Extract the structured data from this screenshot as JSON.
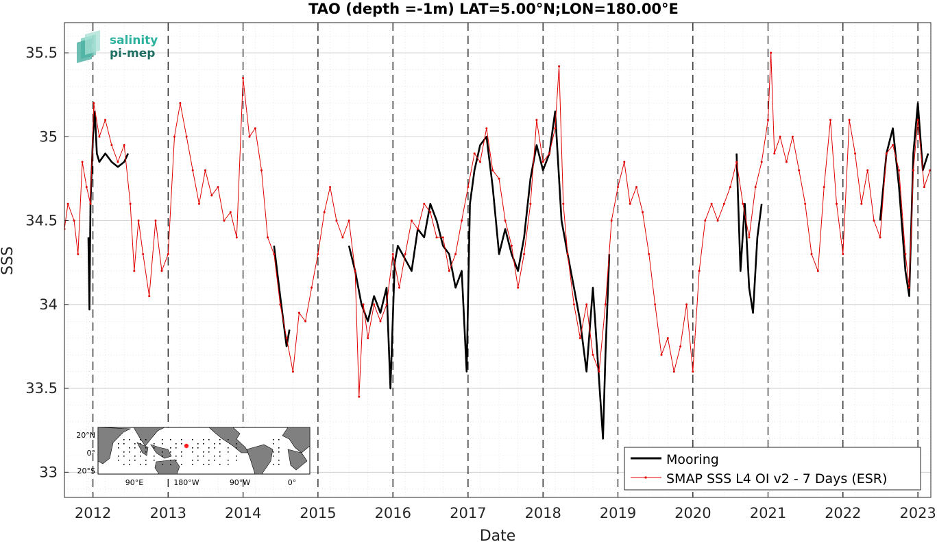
{
  "chart_data": {
    "type": "line",
    "title": "TAO (depth =-1m) LAT=5.00°N;LON=180.00°E",
    "xlabel": "Date",
    "ylabel": "SSS",
    "xlim": [
      "2011-08-15",
      "2023-03-05"
    ],
    "ylim": [
      32.85,
      35.68
    ],
    "x_ticks": [
      "2012",
      "2013",
      "2014",
      "2015",
      "2016",
      "2017",
      "2018",
      "2019",
      "2020",
      "2021",
      "2022",
      "2023"
    ],
    "y_ticks": [
      "33",
      "33.5",
      "34",
      "34.5",
      "35",
      "35.5"
    ],
    "grid": true,
    "year_boundaries_dashed": true,
    "legend_position": "bottom-right",
    "series": [
      {
        "name": "Mooring",
        "color": "#000000",
        "points": [
          [
            "2011-12-10",
            34.4
          ],
          [
            "2011-12-15",
            33.97
          ],
          [
            "2011-12-20",
            34.6
          ],
          [
            "2012-01-01",
            35.0
          ],
          [
            "2012-01-10",
            35.15
          ],
          [
            "2012-01-20",
            34.9
          ],
          [
            "2012-02-01",
            34.85
          ],
          [
            "2012-03-01",
            34.9
          ],
          [
            "2012-04-01",
            34.85
          ],
          [
            "2012-05-01",
            34.82
          ],
          [
            "2012-06-01",
            34.85
          ],
          [
            "2012-06-20",
            34.9
          ],
          [
            "2014-06-01",
            34.35
          ],
          [
            "2014-07-01",
            34.05
          ],
          [
            "2014-08-01",
            33.75
          ],
          [
            "2014-08-15",
            33.85
          ],
          [
            "2015-06-01",
            34.35
          ],
          [
            "2015-07-01",
            34.2
          ],
          [
            "2015-08-01",
            34.0
          ],
          [
            "2015-09-01",
            33.9
          ],
          [
            "2015-10-01",
            34.05
          ],
          [
            "2015-11-01",
            33.95
          ],
          [
            "2015-12-01",
            34.1
          ],
          [
            "2015-12-20",
            33.5
          ],
          [
            "2016-01-10",
            34.25
          ],
          [
            "2016-01-25",
            34.35
          ],
          [
            "2016-04-01",
            34.2
          ],
          [
            "2016-05-01",
            34.45
          ],
          [
            "2016-06-01",
            34.4
          ],
          [
            "2016-07-01",
            34.6
          ],
          [
            "2016-08-01",
            34.5
          ],
          [
            "2016-09-01",
            34.35
          ],
          [
            "2016-10-01",
            34.3
          ],
          [
            "2016-11-01",
            34.1
          ],
          [
            "2016-12-01",
            34.2
          ],
          [
            "2016-12-25",
            33.6
          ],
          [
            "2017-01-10",
            34.6
          ],
          [
            "2017-02-01",
            34.8
          ],
          [
            "2017-03-01",
            34.95
          ],
          [
            "2017-04-01",
            35.0
          ],
          [
            "2017-05-01",
            34.7
          ],
          [
            "2017-06-01",
            34.3
          ],
          [
            "2017-07-01",
            34.45
          ],
          [
            "2017-08-01",
            34.3
          ],
          [
            "2017-09-01",
            34.2
          ],
          [
            "2017-10-01",
            34.4
          ],
          [
            "2017-11-01",
            34.75
          ],
          [
            "2017-12-01",
            34.95
          ],
          [
            "2018-01-01",
            34.8
          ],
          [
            "2018-02-01",
            34.9
          ],
          [
            "2018-03-01",
            35.15
          ],
          [
            "2018-04-01",
            34.5
          ],
          [
            "2018-05-01",
            34.3
          ],
          [
            "2018-06-01",
            34.1
          ],
          [
            "2018-07-01",
            33.9
          ],
          [
            "2018-08-01",
            33.6
          ],
          [
            "2018-09-01",
            34.1
          ],
          [
            "2018-10-01",
            33.55
          ],
          [
            "2018-10-20",
            33.2
          ],
          [
            "2018-11-01",
            33.7
          ],
          [
            "2018-11-20",
            34.3
          ],
          [
            "2020-08-01",
            34.9
          ],
          [
            "2020-08-20",
            34.2
          ],
          [
            "2020-09-10",
            34.6
          ],
          [
            "2020-10-01",
            34.1
          ],
          [
            "2020-10-20",
            33.95
          ],
          [
            "2020-11-10",
            34.4
          ],
          [
            "2020-12-01",
            34.6
          ],
          [
            "2022-07-01",
            34.5
          ],
          [
            "2022-08-01",
            34.9
          ],
          [
            "2022-09-01",
            35.05
          ],
          [
            "2022-10-01",
            34.7
          ],
          [
            "2022-11-01",
            34.2
          ],
          [
            "2022-11-20",
            34.05
          ],
          [
            "2022-12-10",
            34.9
          ],
          [
            "2023-01-01",
            35.2
          ],
          [
            "2023-01-25",
            34.8
          ],
          [
            "2023-02-20",
            34.9
          ]
        ]
      },
      {
        "name": "SMAP SSS L4 OI v2 - 7 Days (ESR)",
        "color": "#e00000",
        "points": [
          [
            "2011-08-15",
            34.45
          ],
          [
            "2011-09-01",
            34.6
          ],
          [
            "2011-10-01",
            34.5
          ],
          [
            "2011-10-20",
            34.3
          ],
          [
            "2011-11-10",
            34.85
          ],
          [
            "2011-12-01",
            34.7
          ],
          [
            "2011-12-20",
            34.6
          ],
          [
            "2012-01-05",
            35.2
          ],
          [
            "2012-02-01",
            35.0
          ],
          [
            "2012-03-01",
            35.1
          ],
          [
            "2012-04-01",
            34.95
          ],
          [
            "2012-05-01",
            34.85
          ],
          [
            "2012-06-01",
            34.95
          ],
          [
            "2012-07-01",
            34.6
          ],
          [
            "2012-07-20",
            34.2
          ],
          [
            "2012-08-10",
            34.5
          ],
          [
            "2012-09-01",
            34.3
          ],
          [
            "2012-10-01",
            34.05
          ],
          [
            "2012-11-01",
            34.5
          ],
          [
            "2012-12-01",
            34.2
          ],
          [
            "2013-01-01",
            34.3
          ],
          [
            "2013-02-01",
            35.0
          ],
          [
            "2013-03-01",
            35.2
          ],
          [
            "2013-04-01",
            35.0
          ],
          [
            "2013-05-01",
            34.8
          ],
          [
            "2013-06-01",
            34.6
          ],
          [
            "2013-07-01",
            34.8
          ],
          [
            "2013-08-01",
            34.65
          ],
          [
            "2013-09-01",
            34.7
          ],
          [
            "2013-10-01",
            34.5
          ],
          [
            "2013-11-01",
            34.55
          ],
          [
            "2013-12-01",
            34.4
          ],
          [
            "2014-01-01",
            35.35
          ],
          [
            "2014-02-01",
            35.0
          ],
          [
            "2014-03-01",
            35.05
          ],
          [
            "2014-04-01",
            34.8
          ],
          [
            "2014-05-01",
            34.4
          ],
          [
            "2014-06-01",
            34.3
          ],
          [
            "2014-07-01",
            34.0
          ],
          [
            "2014-08-01",
            33.8
          ],
          [
            "2014-09-01",
            33.6
          ],
          [
            "2014-10-01",
            33.95
          ],
          [
            "2014-11-01",
            33.9
          ],
          [
            "2014-12-01",
            34.1
          ],
          [
            "2015-01-01",
            34.3
          ],
          [
            "2015-02-01",
            34.55
          ],
          [
            "2015-03-01",
            34.7
          ],
          [
            "2015-04-01",
            34.5
          ],
          [
            "2015-05-01",
            34.4
          ],
          [
            "2015-06-01",
            34.5
          ],
          [
            "2015-07-01",
            34.2
          ],
          [
            "2015-07-20",
            33.45
          ],
          [
            "2015-08-10",
            34.0
          ],
          [
            "2015-09-01",
            33.8
          ],
          [
            "2015-10-01",
            34.0
          ],
          [
            "2015-11-01",
            33.9
          ],
          [
            "2015-12-01",
            34.0
          ],
          [
            "2016-01-01",
            34.3
          ],
          [
            "2016-02-01",
            34.1
          ],
          [
            "2016-03-01",
            34.3
          ],
          [
            "2016-04-01",
            34.5
          ],
          [
            "2016-05-01",
            34.45
          ],
          [
            "2016-06-01",
            34.6
          ],
          [
            "2016-07-01",
            34.55
          ],
          [
            "2016-08-01",
            34.4
          ],
          [
            "2016-09-01",
            34.4
          ],
          [
            "2016-10-01",
            34.2
          ],
          [
            "2016-11-01",
            34.3
          ],
          [
            "2016-12-01",
            34.5
          ],
          [
            "2017-01-01",
            34.7
          ],
          [
            "2017-02-01",
            34.9
          ],
          [
            "2017-03-01",
            34.85
          ],
          [
            "2017-04-01",
            35.05
          ],
          [
            "2017-05-01",
            34.8
          ],
          [
            "2017-06-01",
            34.75
          ],
          [
            "2017-07-01",
            34.5
          ],
          [
            "2017-08-01",
            34.35
          ],
          [
            "2017-09-01",
            34.1
          ],
          [
            "2017-10-01",
            34.3
          ],
          [
            "2017-11-01",
            34.6
          ],
          [
            "2017-12-01",
            35.1
          ],
          [
            "2018-01-01",
            34.85
          ],
          [
            "2018-02-01",
            34.9
          ],
          [
            "2018-03-01",
            35.05
          ],
          [
            "2018-03-20",
            35.42
          ],
          [
            "2018-04-10",
            34.6
          ],
          [
            "2018-05-01",
            34.3
          ],
          [
            "2018-06-01",
            34.0
          ],
          [
            "2018-07-01",
            33.8
          ],
          [
            "2018-08-01",
            34.0
          ],
          [
            "2018-09-01",
            33.7
          ],
          [
            "2018-10-01",
            33.6
          ],
          [
            "2018-11-01",
            34.0
          ],
          [
            "2018-12-01",
            34.5
          ],
          [
            "2019-01-01",
            34.7
          ],
          [
            "2019-02-01",
            34.85
          ],
          [
            "2019-03-01",
            34.6
          ],
          [
            "2019-04-01",
            34.7
          ],
          [
            "2019-05-01",
            34.55
          ],
          [
            "2019-06-01",
            34.3
          ],
          [
            "2019-07-01",
            34.0
          ],
          [
            "2019-08-01",
            33.7
          ],
          [
            "2019-09-01",
            33.8
          ],
          [
            "2019-10-01",
            33.6
          ],
          [
            "2019-11-01",
            33.75
          ],
          [
            "2019-12-01",
            34.0
          ],
          [
            "2020-01-01",
            33.6
          ],
          [
            "2020-02-01",
            34.2
          ],
          [
            "2020-03-01",
            34.5
          ],
          [
            "2020-04-01",
            34.6
          ],
          [
            "2020-05-01",
            34.5
          ],
          [
            "2020-06-01",
            34.6
          ],
          [
            "2020-07-01",
            34.7
          ],
          [
            "2020-08-01",
            34.85
          ],
          [
            "2020-09-01",
            34.6
          ],
          [
            "2020-10-01",
            34.4
          ],
          [
            "2020-11-01",
            34.7
          ],
          [
            "2020-12-01",
            34.85
          ],
          [
            "2021-01-01",
            35.1
          ],
          [
            "2021-01-15",
            35.5
          ],
          [
            "2021-02-01",
            34.9
          ],
          [
            "2021-03-01",
            35.0
          ],
          [
            "2021-04-01",
            34.85
          ],
          [
            "2021-05-01",
            35.0
          ],
          [
            "2021-06-01",
            34.8
          ],
          [
            "2021-07-01",
            34.6
          ],
          [
            "2021-08-01",
            34.3
          ],
          [
            "2021-09-01",
            34.2
          ],
          [
            "2021-10-01",
            34.7
          ],
          [
            "2021-11-01",
            35.1
          ],
          [
            "2021-12-01",
            34.6
          ],
          [
            "2022-01-01",
            34.3
          ],
          [
            "2022-02-01",
            35.1
          ],
          [
            "2022-03-01",
            34.9
          ],
          [
            "2022-04-01",
            34.6
          ],
          [
            "2022-05-01",
            34.8
          ],
          [
            "2022-06-01",
            34.5
          ],
          [
            "2022-07-01",
            34.4
          ],
          [
            "2022-08-01",
            34.9
          ],
          [
            "2022-09-01",
            34.95
          ],
          [
            "2022-10-01",
            34.8
          ],
          [
            "2022-11-01",
            34.3
          ],
          [
            "2022-11-20",
            34.1
          ],
          [
            "2022-12-10",
            34.8
          ],
          [
            "2023-01-01",
            35.1
          ],
          [
            "2023-02-01",
            34.7
          ],
          [
            "2023-03-01",
            34.8
          ]
        ]
      }
    ]
  },
  "logo": {
    "line1": "salinity",
    "line2": "pi-mep"
  },
  "inset_map": {
    "lat_labels": [
      "20°N",
      "0°",
      "20°S"
    ],
    "lon_labels": [
      "90°E",
      "180°W",
      "90°W",
      "0°"
    ]
  }
}
